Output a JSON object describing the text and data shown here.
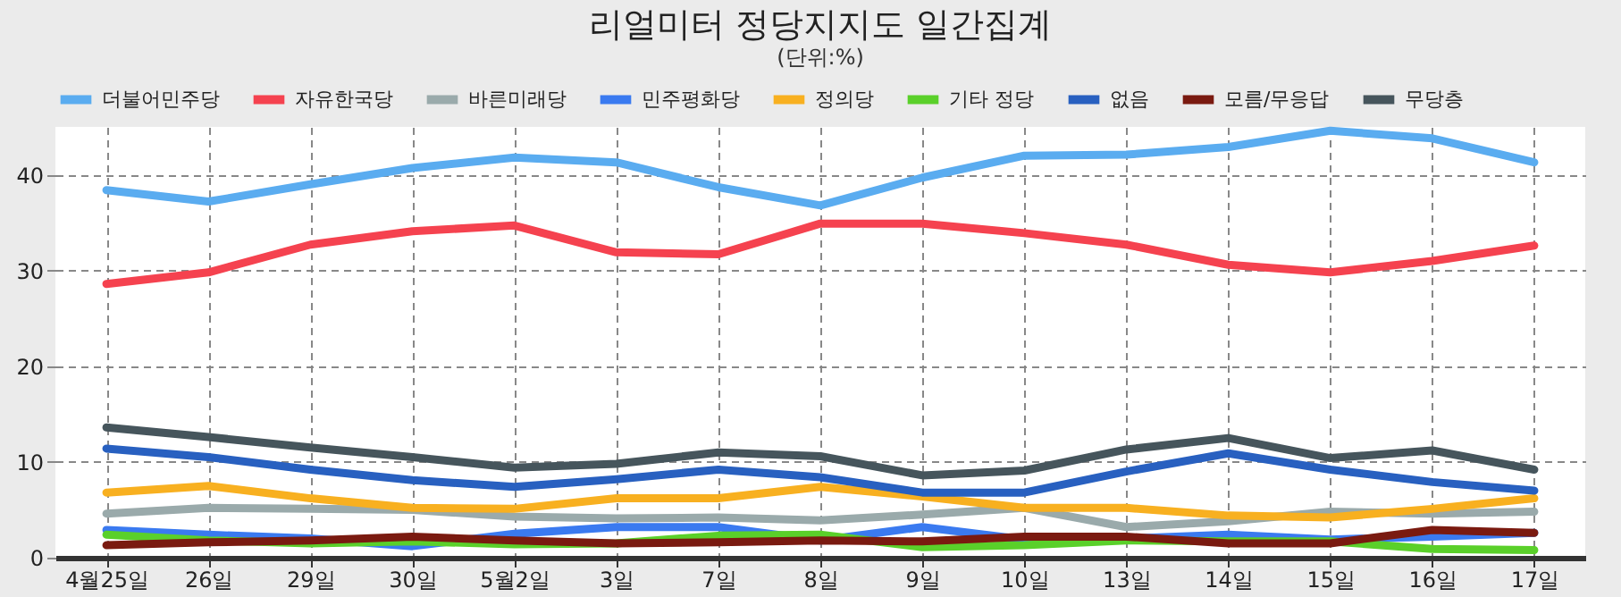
{
  "chart_data": {
    "type": "line",
    "title": "리얼미터 정당지지도 일간집계",
    "subtitle": "(단위:%)",
    "categories": [
      "4월25일",
      "26일",
      "29일",
      "30일",
      "5월2일",
      "3일",
      "7일",
      "8일",
      "9일",
      "10일",
      "13일",
      "14일",
      "15일",
      "16일",
      "17일"
    ],
    "series": [
      {
        "name": "더불어민주당",
        "color": "#5aacf0",
        "values": [
          38.4,
          37.2,
          39.0,
          40.7,
          41.8,
          41.3,
          38.7,
          36.8,
          39.7,
          42.0,
          42.1,
          42.9,
          44.6,
          43.8,
          41.3
        ]
      },
      {
        "name": "자유한국당",
        "color": "#f5424f",
        "values": [
          28.6,
          29.8,
          32.7,
          34.1,
          34.7,
          31.9,
          31.7,
          34.9,
          34.9,
          33.9,
          32.7,
          30.6,
          29.8,
          31.0,
          32.6
        ]
      },
      {
        "name": "바른미래당",
        "color": "#9aaaab",
        "values": [
          4.6,
          5.2,
          5.1,
          5.0,
          4.3,
          4.1,
          4.2,
          3.9,
          4.5,
          5.2,
          3.2,
          3.8,
          4.8,
          4.6,
          4.8
        ]
      },
      {
        "name": "민주평화당",
        "color": "#3a7af0",
        "values": [
          2.9,
          2.4,
          2.0,
          1.2,
          2.5,
          3.2,
          3.2,
          1.8,
          3.2,
          1.9,
          2.0,
          2.4,
          1.9,
          2.2,
          2.6
        ]
      },
      {
        "name": "정의당",
        "color": "#f8b020",
        "values": [
          6.8,
          7.5,
          6.2,
          5.2,
          5.1,
          6.2,
          6.2,
          7.4,
          6.4,
          5.2,
          5.2,
          4.4,
          4.2,
          5.1,
          6.2
        ]
      },
      {
        "name": "기타 정당",
        "color": "#5ad02a",
        "values": [
          2.4,
          1.8,
          1.5,
          1.7,
          1.4,
          1.5,
          2.3,
          2.4,
          1.1,
          1.3,
          1.8,
          1.7,
          1.7,
          0.9,
          0.8
        ]
      },
      {
        "name": "없음",
        "color": "#2860c0",
        "values": [
          11.4,
          10.5,
          9.2,
          8.1,
          7.4,
          8.2,
          9.2,
          8.4,
          6.8,
          6.8,
          9.0,
          10.9,
          9.2,
          7.9,
          7.0
        ]
      },
      {
        "name": "모름/무응답",
        "color": "#7a1a10",
        "values": [
          1.3,
          1.6,
          1.8,
          2.2,
          1.8,
          1.5,
          1.6,
          1.8,
          1.7,
          2.2,
          2.2,
          1.5,
          1.5,
          2.9,
          2.6
        ]
      },
      {
        "name": "무당층",
        "color": "#46555c",
        "values": [
          13.6,
          12.6,
          11.5,
          10.5,
          9.4,
          9.8,
          11.0,
          10.6,
          8.6,
          9.1,
          11.3,
          12.5,
          10.4,
          11.2,
          9.2
        ]
      }
    ],
    "ylim": [
      0,
      45
    ],
    "yticks": [
      0,
      10,
      20,
      30,
      40
    ],
    "grid": true,
    "legend": "top",
    "line_style": "solid",
    "marker": "none"
  }
}
